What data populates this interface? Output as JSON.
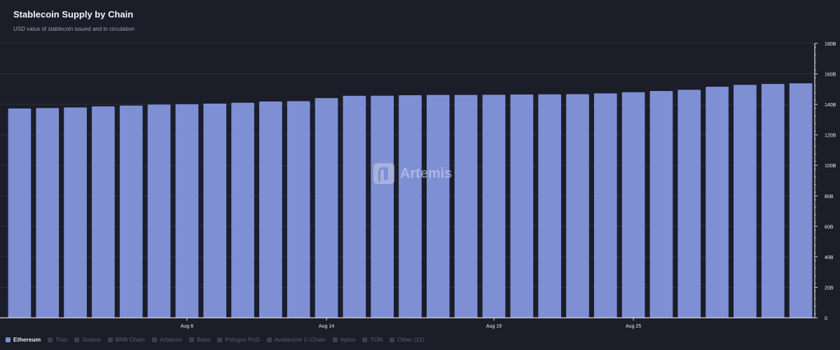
{
  "header": {
    "title": "Stablecoin Supply by Chain",
    "subtitle": "USD value of stablecoin issued and in circulation"
  },
  "watermark": {
    "text": "Artemis"
  },
  "legend": [
    {
      "label": "Ethereum",
      "active": true
    },
    {
      "label": "Tron",
      "active": false
    },
    {
      "label": "Solana",
      "active": false
    },
    {
      "label": "BNB Chain",
      "active": false
    },
    {
      "label": "Arbitrum",
      "active": false
    },
    {
      "label": "Base",
      "active": false
    },
    {
      "label": "Polygon PoS",
      "active": false
    },
    {
      "label": "Avalanche C-Chain",
      "active": false
    },
    {
      "label": "Aptos",
      "active": false
    },
    {
      "label": "TON",
      "active": false
    },
    {
      "label": "Other (11)",
      "active": false
    }
  ],
  "colors": {
    "bar": "#7e8fd4",
    "background": "#1b1d29",
    "grid": "#2c2f3d",
    "axis": "#d8dae3",
    "legend_inactive": "#3a3e4d"
  },
  "chart_data": {
    "type": "bar",
    "title": "Stablecoin Supply by Chain",
    "subtitle": "USD value of stablecoin issued and in circulation",
    "x_tick_labels": [
      "Aug 8",
      "Aug 14",
      "Aug 19",
      "Aug 25"
    ],
    "x_tick_bar_index": [
      6,
      11,
      17,
      22
    ],
    "y_axis": {
      "position": "right",
      "ticks": [
        "0",
        "20B",
        "40B",
        "60B",
        "80B",
        "100B",
        "120B",
        "140B",
        "160B",
        "180B"
      ],
      "ylim": [
        0,
        180
      ]
    },
    "series": [
      {
        "name": "Ethereum",
        "values": [
          137.3,
          137.6,
          138,
          138.7,
          139.2,
          139.9,
          140.1,
          140.5,
          141.1,
          141.9,
          142.1,
          144.1,
          145.6,
          145.7,
          146,
          146.2,
          146.2,
          146.3,
          146.5,
          146.6,
          146.7,
          147.2,
          148,
          148.8,
          149.6,
          151.6,
          152.8,
          153.4,
          153.8
        ]
      }
    ],
    "grid": true,
    "legend_position": "bottom-left"
  }
}
